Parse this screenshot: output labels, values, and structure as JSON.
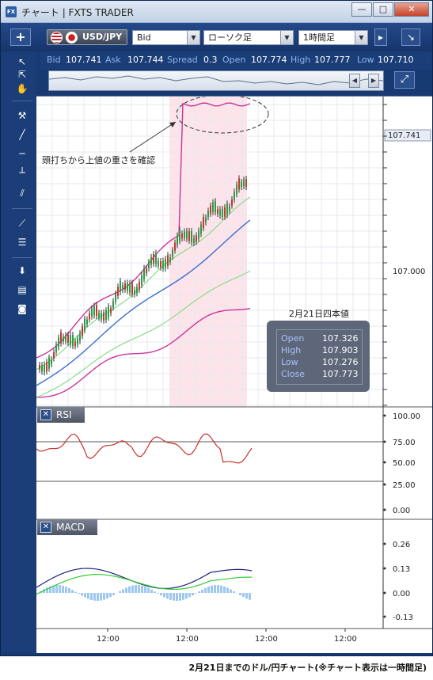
{
  "window": {
    "icon_label": "FX",
    "title": "チャート | FXTS TRADER",
    "minimize": "—",
    "maximize": "□",
    "close": "✕"
  },
  "toolbar": {
    "add_label": "+",
    "symbol": "USD/JPY",
    "price_type": "Bid",
    "chart_type": "ローソク足",
    "timeframe": "1時間足",
    "expand_label": "↘",
    "settings_label": "▸"
  },
  "quote": {
    "bid_label": "Bid",
    "bid": "107.741",
    "ask_label": "Ask",
    "ask": "107.744",
    "spread_label": "Spread",
    "spread": "0.3",
    "open_label": "Open",
    "open": "107.774",
    "high_label": "High",
    "high": "107.777",
    "low_label": "Low",
    "low": "107.710"
  },
  "price_axis": {
    "current_price": "107.741",
    "level_label": "107.000"
  },
  "annotation": "頭打ちから上値の重さを確認",
  "ohlc_box": {
    "title": "2月21日四本値",
    "rows": [
      {
        "label": "Open",
        "value": "107.326"
      },
      {
        "label": "High",
        "value": "107.903"
      },
      {
        "label": "Low",
        "value": "107.276"
      },
      {
        "label": "Close",
        "value": "107.773"
      }
    ]
  },
  "rsi_panel": {
    "label": "RSI",
    "close_label": "✕",
    "ticks": [
      "100.00",
      "75.00",
      "50.00",
      "25.00",
      "0.00"
    ]
  },
  "macd_panel": {
    "label": "MACD",
    "close_label": "✕",
    "ticks": [
      "0.26",
      "0.13",
      "0.00",
      "-0.13"
    ]
  },
  "time_axis": [
    "12:00",
    "12:00",
    "12:00",
    "12:00"
  ],
  "caption": "2月21日までのドル/円チャート(※チャート表示は一時間足)",
  "colors": {
    "frame": "#173a72",
    "upper_band": "#cc3399",
    "ma": "#3a6fcc",
    "sigma1": "#88dd88",
    "highlight": "#fde4ea",
    "rsi": "#c8302a",
    "macd": "#1a237e",
    "signal": "#33cc33",
    "histogram": "#9ec8f0"
  }
}
